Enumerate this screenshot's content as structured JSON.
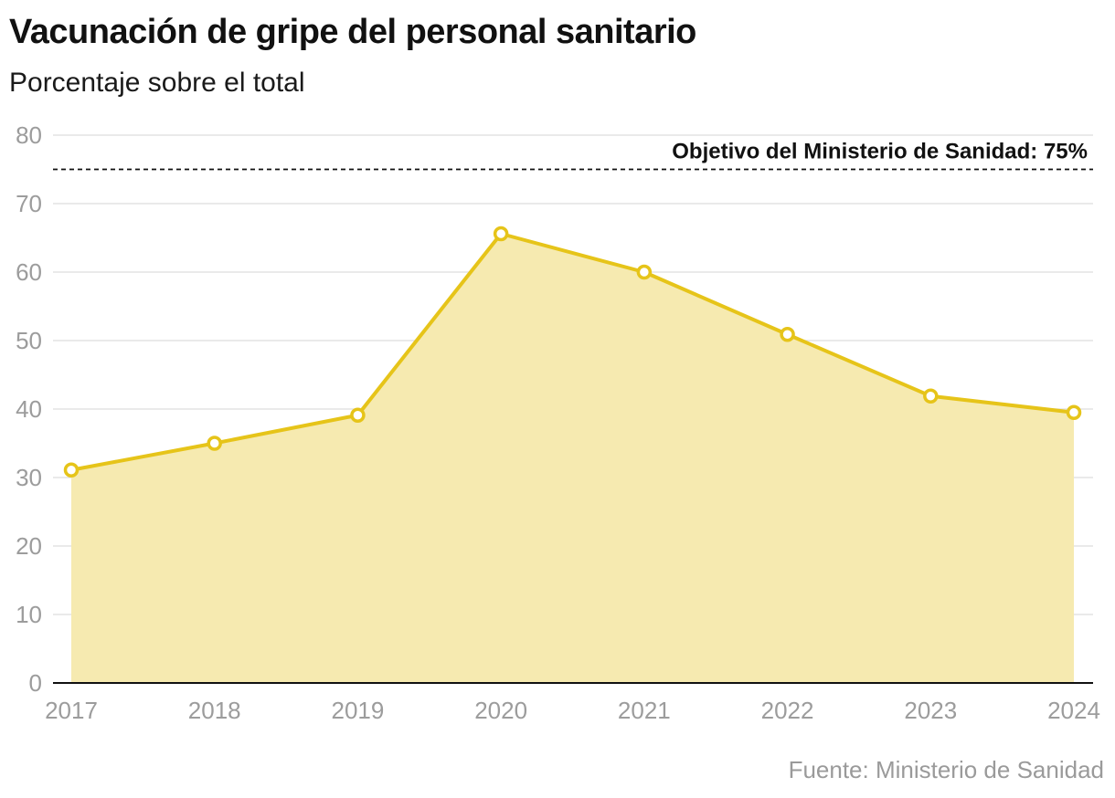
{
  "header": {
    "title": "Vacunación de gripe del personal sanitario",
    "subtitle": "Porcentaje sobre el total"
  },
  "footer": {
    "source": "Fuente: Ministerio de Sanidad"
  },
  "colors": {
    "line": "#e6c419",
    "area": "#f6eab0",
    "grid": "#e3e3e3",
    "tick_text": "#9c9c9c",
    "target_line": "#111111"
  },
  "chart_data": {
    "type": "area",
    "title": "Vacunación de gripe del personal sanitario",
    "subtitle": "Porcentaje sobre el total",
    "xlabel": "",
    "ylabel": "",
    "categories": [
      "2017",
      "2018",
      "2019",
      "2020",
      "2021",
      "2022",
      "2023",
      "2024"
    ],
    "series": [
      {
        "name": "Vacunación de gripe del personal sanitario",
        "values": [
          31.1,
          35.0,
          39.1,
          65.6,
          60.0,
          50.9,
          41.9,
          39.5
        ]
      }
    ],
    "ylim": [
      0,
      80
    ],
    "yticks": [
      "0",
      "10",
      "20",
      "30",
      "40",
      "50",
      "60",
      "70",
      "80"
    ],
    "grid": true,
    "reference_line": {
      "value": 75,
      "label": "Objetivo del Ministerio de Sanidad: 75%",
      "style": "dashed"
    },
    "source": "Fuente: Ministerio de Sanidad"
  }
}
